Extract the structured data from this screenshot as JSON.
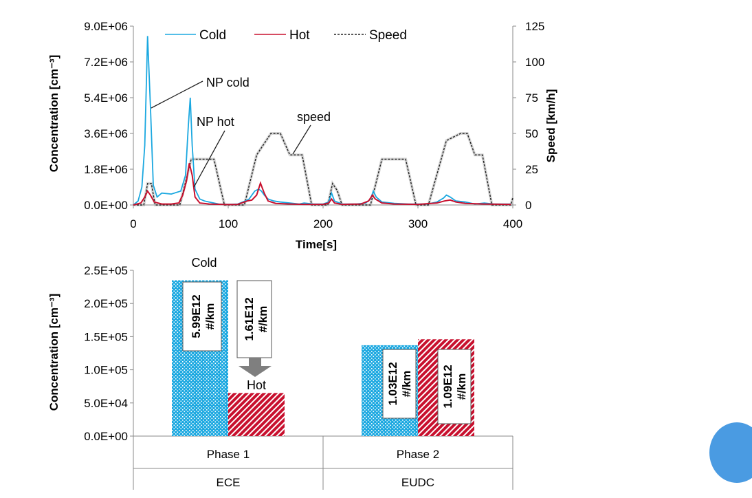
{
  "chart_data": [
    {
      "type": "line",
      "xlabel": "Time[s]",
      "ylabel": "Concentration [cm⁻³]",
      "y2label": "Speed [km/h]",
      "xlim": [
        0,
        400
      ],
      "ylim": [
        0,
        9000000
      ],
      "y2lim": [
        0,
        125
      ],
      "x_ticks": [
        "0",
        "100",
        "200",
        "300",
        "400"
      ],
      "y_ticks": [
        "0.0E+00",
        "1.8E+06",
        "3.6E+06",
        "5.4E+06",
        "7.2E+06",
        "9.0E+06"
      ],
      "y2_ticks": [
        "0",
        "25",
        "50",
        "75",
        "100",
        "125"
      ],
      "legend": [
        "Cold",
        "Hot",
        "Speed"
      ],
      "legend_position": "top",
      "annotations": [
        "NP cold",
        "NP hot",
        "speed"
      ],
      "series": [
        {
          "name": "Cold",
          "color": "#1ba8e0",
          "axis": "left",
          "points": [
            [
              0,
              0
            ],
            [
              5,
              200000
            ],
            [
              9,
              900000
            ],
            [
              12,
              3000000
            ],
            [
              15,
              8500000
            ],
            [
              18,
              5000000
            ],
            [
              21,
              1000000
            ],
            [
              25,
              400000
            ],
            [
              30,
              600000
            ],
            [
              40,
              550000
            ],
            [
              50,
              700000
            ],
            [
              55,
              1500000
            ],
            [
              58,
              4000000
            ],
            [
              60,
              5400000
            ],
            [
              62,
              3000000
            ],
            [
              65,
              800000
            ],
            [
              70,
              300000
            ],
            [
              75,
              200000
            ],
            [
              80,
              150000
            ],
            [
              90,
              50000
            ],
            [
              100,
              30000
            ],
            [
              110,
              50000
            ],
            [
              118,
              200000
            ],
            [
              122,
              300000
            ],
            [
              128,
              700000
            ],
            [
              132,
              800000
            ],
            [
              135,
              700000
            ],
            [
              138,
              500000
            ],
            [
              142,
              300000
            ],
            [
              148,
              200000
            ],
            [
              155,
              150000
            ],
            [
              165,
              100000
            ],
            [
              175,
              50000
            ],
            [
              180,
              100000
            ],
            [
              190,
              50000
            ],
            [
              200,
              50000
            ],
            [
              206,
              150000
            ],
            [
              209,
              600000
            ],
            [
              212,
              200000
            ],
            [
              220,
              50000
            ],
            [
              235,
              50000
            ],
            [
              245,
              100000
            ],
            [
              250,
              300000
            ],
            [
              253,
              700000
            ],
            [
              256,
              400000
            ],
            [
              262,
              150000
            ],
            [
              275,
              80000
            ],
            [
              290,
              50000
            ],
            [
              300,
              50000
            ],
            [
              310,
              50000
            ],
            [
              320,
              150000
            ],
            [
              327,
              350000
            ],
            [
              330,
              500000
            ],
            [
              334,
              400000
            ],
            [
              340,
              200000
            ],
            [
              350,
              150000
            ],
            [
              360,
              50000
            ],
            [
              370,
              100000
            ],
            [
              380,
              50000
            ],
            [
              390,
              50000
            ],
            [
              398,
              50000
            ]
          ]
        },
        {
          "name": "Hot",
          "color": "#c8102e",
          "axis": "left",
          "points": [
            [
              0,
              0
            ],
            [
              8,
              100000
            ],
            [
              12,
              400000
            ],
            [
              15,
              700000
            ],
            [
              18,
              500000
            ],
            [
              22,
              150000
            ],
            [
              30,
              50000
            ],
            [
              40,
              50000
            ],
            [
              48,
              100000
            ],
            [
              52,
              500000
            ],
            [
              56,
              1200000
            ],
            [
              59,
              2100000
            ],
            [
              62,
              1500000
            ],
            [
              65,
              400000
            ],
            [
              70,
              100000
            ],
            [
              80,
              50000
            ],
            [
              100,
              20000
            ],
            [
              110,
              30000
            ],
            [
              120,
              200000
            ],
            [
              125,
              250000
            ],
            [
              130,
              500000
            ],
            [
              134,
              1100000
            ],
            [
              138,
              600000
            ],
            [
              142,
              200000
            ],
            [
              150,
              80000
            ],
            [
              165,
              50000
            ],
            [
              180,
              30000
            ],
            [
              200,
              30000
            ],
            [
              206,
              100000
            ],
            [
              209,
              300000
            ],
            [
              212,
              100000
            ],
            [
              220,
              30000
            ],
            [
              240,
              50000
            ],
            [
              248,
              200000
            ],
            [
              252,
              500000
            ],
            [
              255,
              300000
            ],
            [
              262,
              100000
            ],
            [
              275,
              50000
            ],
            [
              300,
              30000
            ],
            [
              320,
              100000
            ],
            [
              328,
              200000
            ],
            [
              334,
              250000
            ],
            [
              340,
              150000
            ],
            [
              350,
              80000
            ],
            [
              370,
              50000
            ],
            [
              398,
              30000
            ]
          ]
        },
        {
          "name": "Speed",
          "color": "#222222",
          "axis": "right",
          "points": [
            [
              0,
              0
            ],
            [
              11,
              0
            ],
            [
              15,
              15
            ],
            [
              19,
              15
            ],
            [
              23,
              0
            ],
            [
              49,
              0
            ],
            [
              61,
              32
            ],
            [
              85,
              32
            ],
            [
              96,
              0
            ],
            [
              117,
              0
            ],
            [
              130,
              35
            ],
            [
              145,
              50
            ],
            [
              155,
              50
            ],
            [
              165,
              35
            ],
            [
              178,
              35
            ],
            [
              188,
              0
            ],
            [
              205,
              0
            ],
            [
              210,
              15
            ],
            [
              215,
              10
            ],
            [
              220,
              0
            ],
            [
              250,
              0
            ],
            [
              262,
              32
            ],
            [
              287,
              32
            ],
            [
              298,
              0
            ],
            [
              311,
              0
            ],
            [
              330,
              45
            ],
            [
              345,
              50
            ],
            [
              352,
              50
            ],
            [
              360,
              35
            ],
            [
              368,
              35
            ],
            [
              378,
              0
            ],
            [
              398,
              0
            ],
            [
              400,
              5
            ]
          ]
        }
      ]
    },
    {
      "type": "bar",
      "ylabel": "Concentration [cm⁻³]",
      "ylim": [
        0,
        250000
      ],
      "y_ticks": [
        "0.0E+00",
        "5.0E+04",
        "1.0E+05",
        "1.5E+05",
        "2.0E+05",
        "2.5E+05"
      ],
      "categories": [
        "Phase 1",
        "Phase 2"
      ],
      "category_groups": [
        "ECE",
        "EUDC"
      ],
      "series": [
        {
          "name": "Cold",
          "color": "#1ba8e0",
          "values": [
            235000,
            137000
          ]
        },
        {
          "name": "Hot",
          "color": "#c8102e",
          "values": [
            65000,
            146000
          ]
        }
      ],
      "data_labels": [
        {
          "value": "5.99E12",
          "unit": "#/km"
        },
        {
          "value": "1.61E12",
          "unit": "#/km"
        },
        {
          "value": "1.03E12",
          "unit": "#/km"
        },
        {
          "value": "1.09E12",
          "unit": "#/km"
        }
      ],
      "annotations": {
        "top": "Cold",
        "arrow": "Hot"
      }
    }
  ]
}
